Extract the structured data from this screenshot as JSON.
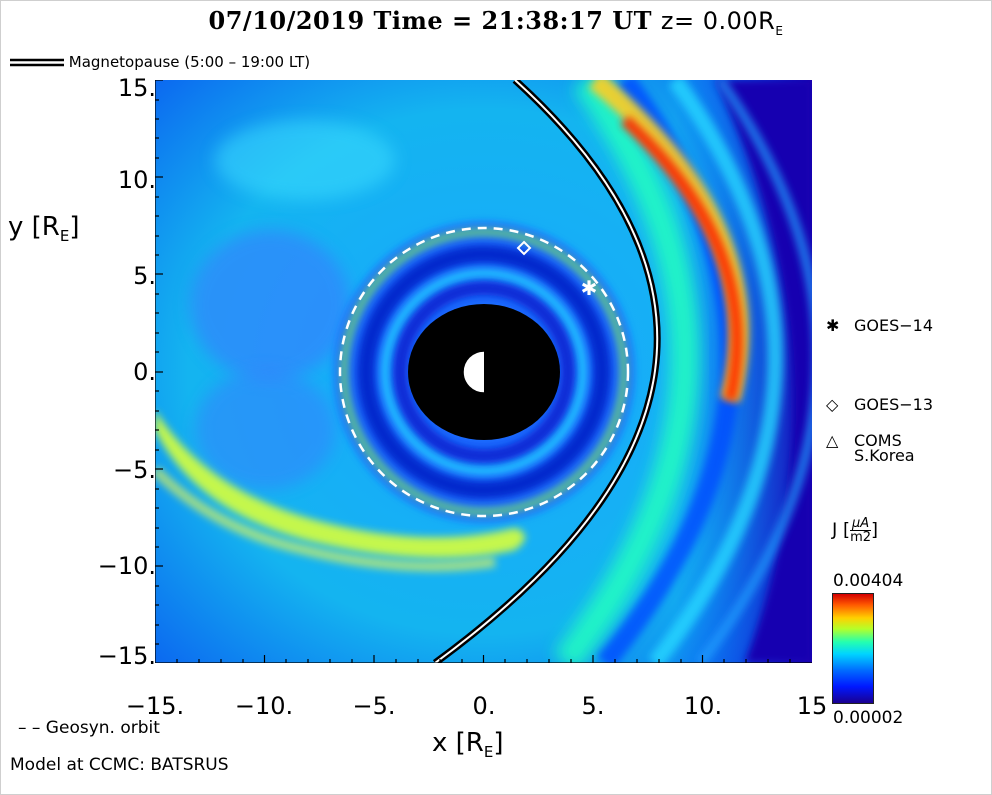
{
  "header": {
    "date": "07/10/2019",
    "time_label": "Time =",
    "time": "21:38:17 UT",
    "z_label": "z= 0.00R",
    "z_sub": "E"
  },
  "magnetopause_legend": "Magnetopause (5:00 – 19:00 LT)",
  "axes": {
    "ylabel_main": "y [R",
    "ylabel_sub": "E",
    "ylabel_end": "]",
    "xlabel_main": "x [R",
    "xlabel_sub": "E",
    "xlabel_end": "]",
    "yticks": [
      "15.",
      "10.",
      "5.",
      "0.",
      "−5.",
      "−10.",
      "−15."
    ],
    "xticks": [
      "−15.",
      "−10.",
      "−5.",
      "0.",
      "5.",
      "10.",
      "15"
    ]
  },
  "satellites": [
    {
      "symbol": "✱",
      "name": "GOES−14"
    },
    {
      "symbol": "◇",
      "name": "GOES−13"
    },
    {
      "symbol": "△",
      "name": "COMS",
      "name2": "S.Korea"
    }
  ],
  "colorbar": {
    "label_main": "J [",
    "label_num": "μA",
    "label_den": "m2",
    "label_end": "]",
    "max": "0.00404",
    "min": "0.00002",
    "colors": [
      "#d40000",
      "#ffd000",
      "#24ffb0",
      "#00d4ff",
      "#0018ff",
      "#1a0090"
    ]
  },
  "footer": {
    "geosyn": "– –  Geosyn. orbit",
    "model": "Model at CCMC: BATSRUS"
  }
}
